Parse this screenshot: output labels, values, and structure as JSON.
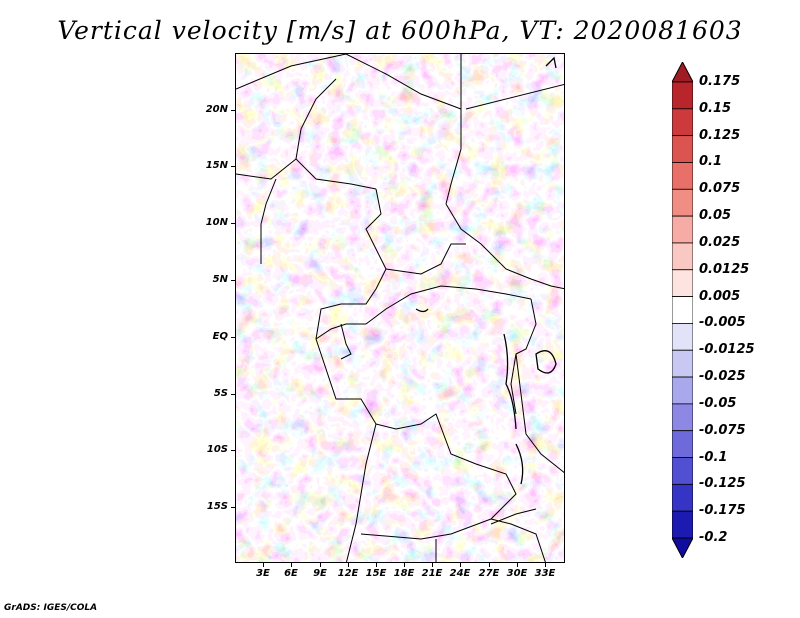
{
  "title": "Vertical velocity [m/s] at 600hPa, VT: 2020081603",
  "credit": "GrADS: IGES/COLA",
  "map": {
    "variable": "Vertical velocity",
    "level": "600hPa",
    "lat_labels": [
      "20N",
      "15N",
      "10N",
      "5N",
      "EQ",
      "5S",
      "10S",
      "15S"
    ],
    "lon_labels": [
      "3E",
      "6E",
      "9E",
      "12E",
      "15E",
      "18E",
      "21E",
      "24E",
      "27E",
      "30E",
      "33E"
    ]
  },
  "colorbar": {
    "labels": [
      "0.175",
      "0.15",
      "0.125",
      "0.1",
      "0.075",
      "0.05",
      "0.025",
      "0.0125",
      "0.005",
      "-0.005",
      "-0.0125",
      "-0.025",
      "-0.05",
      "-0.075",
      "-0.1",
      "-0.125",
      "-0.175",
      "-0.2"
    ],
    "colors": [
      "#a01c24",
      "#b8262c",
      "#cc3a3c",
      "#dc5450",
      "#e87068",
      "#f08e84",
      "#f6aca4",
      "#fac8c2",
      "#fde4e0",
      "#ffffff",
      "#e2e2f8",
      "#c8c8f2",
      "#aaa8ec",
      "#8c88e4",
      "#6e6adc",
      "#5250d2",
      "#3634c4",
      "#1c1ab0",
      "#100ca0"
    ]
  }
}
